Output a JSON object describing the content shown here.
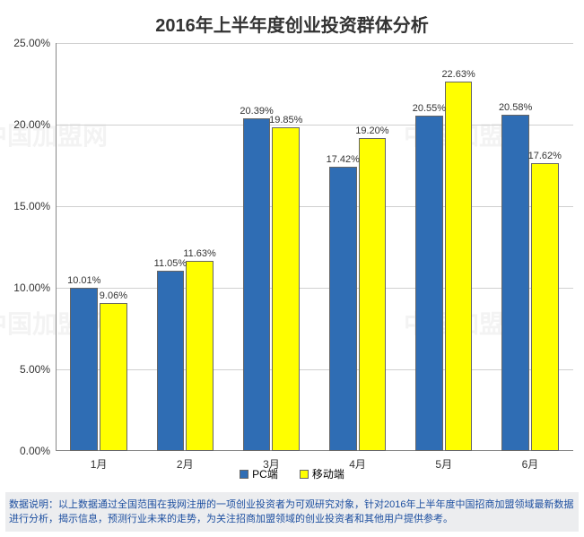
{
  "chart": {
    "type": "bar",
    "title": "2016年上半年度创业投资群体分析",
    "title_fontsize": 20,
    "title_color": "#333333",
    "background_color": "#ffffff",
    "grid_color": "#d0d0d0",
    "axis_color": "#888888",
    "categories": [
      "1月",
      "2月",
      "3月",
      "4月",
      "5月",
      "6月"
    ],
    "series": [
      {
        "name": "PC端",
        "color": "#2f6db4",
        "values": [
          10.01,
          11.05,
          20.39,
          17.42,
          20.55,
          20.58
        ]
      },
      {
        "name": "移动端",
        "color": "#ffff00",
        "values": [
          9.06,
          11.63,
          19.85,
          19.2,
          22.63,
          17.62
        ]
      }
    ],
    "ylim": [
      0,
      25
    ],
    "ytick_step": 5,
    "tick_label_fontsize": 12,
    "tick_label_color": "#333333",
    "data_label_fontsize": 11,
    "data_label_color": "#333333",
    "legend_fontsize": 12,
    "bar_group_width": 0.66
  },
  "footer": {
    "text": "数据说明：以上数据通过全国范围在我网注册的一项创业投资者为可观研究对象，针对2016年上半年度中国招商加盟领域最新数据进行分析，揭示信息，预测行业未来的走势，为关注招商加盟领域的创业投资者和其他用户提供参考。",
    "background_color": "#ecedef",
    "fontsize": 11,
    "color": "#1d4fa0"
  },
  "watermark": {
    "text": "中国加盟网",
    "color": "#e8e8e8"
  }
}
